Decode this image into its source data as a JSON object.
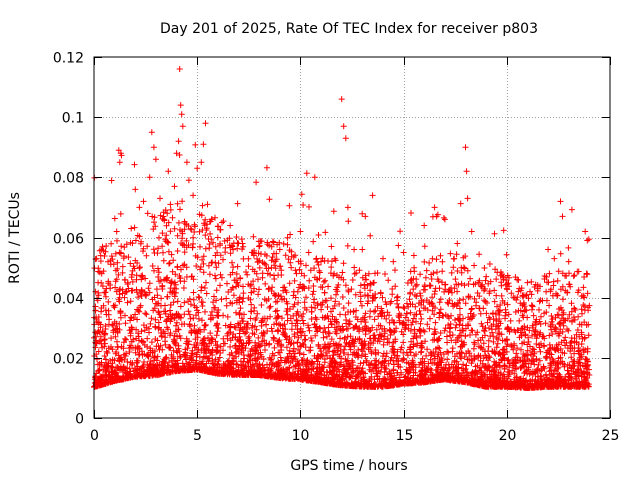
{
  "chart_data": {
    "type": "scatter",
    "title": "Day 201 of 2025, Rate Of TEC Index for receiver p803",
    "xlabel": "GPS time / hours",
    "ylabel": "ROTI / TECUs",
    "xlim": [
      0,
      25
    ],
    "ylim": [
      0,
      0.12
    ],
    "xticks": [
      0,
      5,
      10,
      15,
      20,
      25
    ],
    "xtick_labels": [
      "0",
      "5",
      "10",
      "15",
      "20",
      "25"
    ],
    "yticks": [
      0,
      0.02,
      0.04,
      0.06,
      0.08,
      0.1,
      0.12
    ],
    "ytick_labels": [
      "0",
      "0.02",
      "0.04",
      "0.06",
      "0.08",
      "0.1",
      "0.12"
    ],
    "grid": true,
    "marker": "+",
    "marker_color": "#ff0000",
    "data_x_range": [
      0,
      24
    ],
    "baseline_envelope": [
      [
        0.0,
        0.017,
        0.012
      ],
      [
        1.0,
        0.019,
        0.012
      ],
      [
        2.0,
        0.021,
        0.013
      ],
      [
        3.0,
        0.022,
        0.014
      ],
      [
        4.0,
        0.024,
        0.015
      ],
      [
        5.0,
        0.024,
        0.014
      ],
      [
        6.0,
        0.022,
        0.013
      ],
      [
        7.0,
        0.021,
        0.012
      ],
      [
        8.0,
        0.021,
        0.012
      ],
      [
        9.0,
        0.02,
        0.012
      ],
      [
        10.0,
        0.019,
        0.011
      ],
      [
        11.0,
        0.018,
        0.011
      ],
      [
        12.0,
        0.017,
        0.011
      ],
      [
        13.0,
        0.016,
        0.01
      ],
      [
        14.0,
        0.016,
        0.01
      ],
      [
        15.0,
        0.017,
        0.01
      ],
      [
        16.0,
        0.018,
        0.011
      ],
      [
        17.0,
        0.019,
        0.011
      ],
      [
        18.0,
        0.018,
        0.011
      ],
      [
        19.0,
        0.016,
        0.01
      ],
      [
        20.0,
        0.016,
        0.01
      ],
      [
        21.0,
        0.015,
        0.009
      ],
      [
        22.0,
        0.016,
        0.01
      ],
      [
        23.0,
        0.016,
        0.01
      ],
      [
        24.0,
        0.016,
        0.01
      ]
    ],
    "outliers": [
      [
        0.2,
        0.045
      ],
      [
        0.6,
        0.043
      ],
      [
        1.1,
        0.062
      ],
      [
        1.2,
        0.089
      ],
      [
        1.25,
        0.085
      ],
      [
        1.3,
        0.088
      ],
      [
        1.8,
        0.063
      ],
      [
        2.0,
        0.076
      ],
      [
        2.2,
        0.07
      ],
      [
        2.4,
        0.072
      ],
      [
        2.6,
        0.068
      ],
      [
        2.7,
        0.08
      ],
      [
        2.8,
        0.095
      ],
      [
        2.9,
        0.09
      ],
      [
        3.0,
        0.086
      ],
      [
        3.2,
        0.073
      ],
      [
        3.4,
        0.066
      ],
      [
        3.6,
        0.082
      ],
      [
        3.7,
        0.071
      ],
      [
        3.9,
        0.077
      ],
      [
        4.0,
        0.088
      ],
      [
        4.1,
        0.092
      ],
      [
        4.15,
        0.116
      ],
      [
        4.2,
        0.104
      ],
      [
        4.25,
        0.101
      ],
      [
        4.3,
        0.097
      ],
      [
        4.5,
        0.085
      ],
      [
        4.6,
        0.079
      ],
      [
        4.8,
        0.074
      ],
      [
        5.0,
        0.083
      ],
      [
        5.2,
        0.085
      ],
      [
        5.3,
        0.091
      ],
      [
        5.4,
        0.098
      ],
      [
        5.5,
        0.071
      ],
      [
        5.7,
        0.066
      ],
      [
        6.0,
        0.06
      ],
      [
        6.2,
        0.065
      ],
      [
        6.6,
        0.064
      ],
      [
        7.0,
        0.058
      ],
      [
        8.0,
        0.057
      ],
      [
        9.0,
        0.056
      ],
      [
        9.5,
        0.061
      ],
      [
        10.0,
        0.062
      ],
      [
        10.4,
        0.055
      ],
      [
        10.7,
        0.08
      ],
      [
        11.0,
        0.052
      ],
      [
        11.5,
        0.057
      ],
      [
        12.0,
        0.106
      ],
      [
        12.1,
        0.097
      ],
      [
        12.2,
        0.093
      ],
      [
        12.3,
        0.07
      ],
      [
        12.6,
        0.056
      ],
      [
        13.0,
        0.056
      ],
      [
        13.5,
        0.074
      ],
      [
        14.0,
        0.053
      ],
      [
        14.5,
        0.052
      ],
      [
        15.0,
        0.055
      ],
      [
        15.5,
        0.054
      ],
      [
        16.0,
        0.064
      ],
      [
        16.5,
        0.07
      ],
      [
        16.6,
        0.067
      ],
      [
        17.0,
        0.066
      ],
      [
        17.6,
        0.058
      ],
      [
        18.0,
        0.09
      ],
      [
        18.05,
        0.082
      ],
      [
        18.1,
        0.073
      ],
      [
        18.3,
        0.062
      ],
      [
        19.0,
        0.047
      ],
      [
        20.0,
        0.043
      ],
      [
        20.5,
        0.046
      ],
      [
        21.0,
        0.045
      ],
      [
        21.5,
        0.043
      ],
      [
        22.0,
        0.056
      ],
      [
        22.3,
        0.053
      ],
      [
        22.6,
        0.072
      ],
      [
        22.7,
        0.067
      ],
      [
        23.0,
        0.052
      ],
      [
        23.8,
        0.062
      ],
      [
        23.9,
        0.059
      ]
    ]
  }
}
